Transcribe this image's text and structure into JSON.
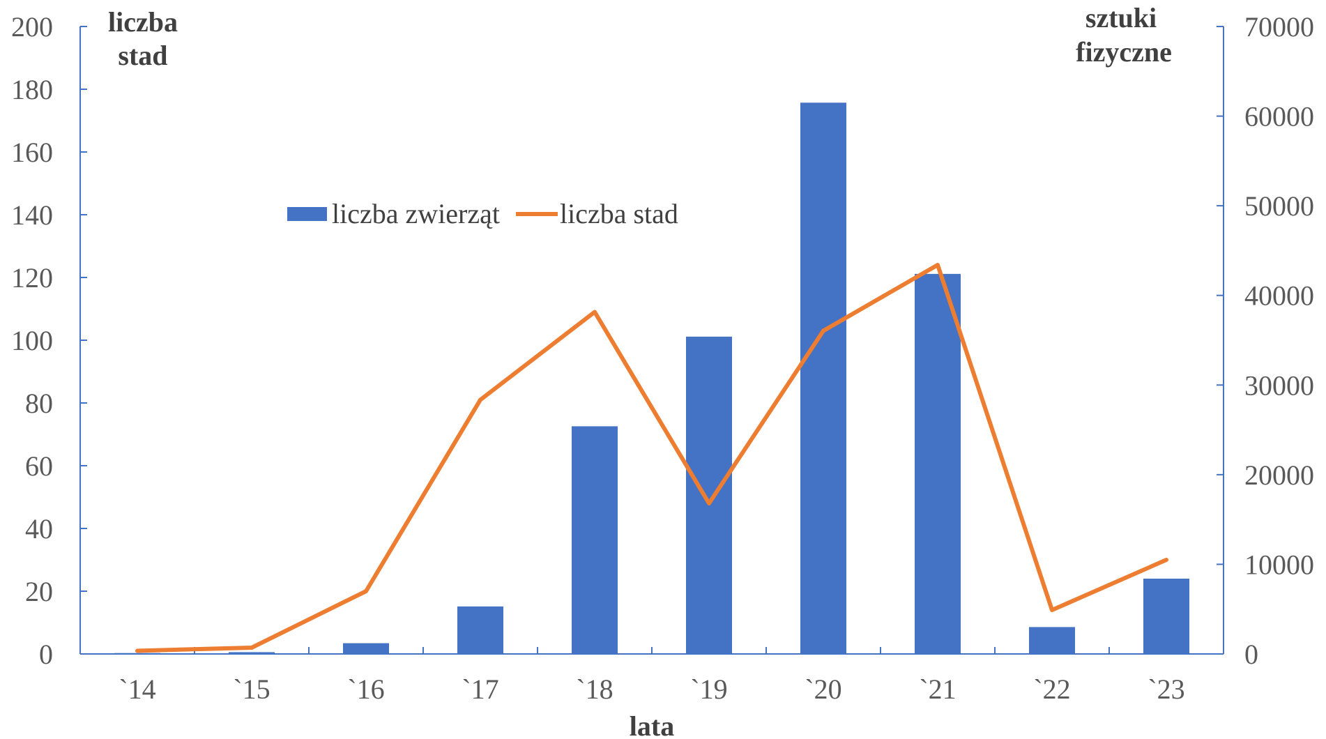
{
  "chart_data": {
    "type": "bar",
    "categories": [
      "`14",
      "`15",
      "`16",
      "`17",
      "`18",
      "`19",
      "`20",
      "`21",
      "`22",
      "`23"
    ],
    "series": [
      {
        "name": "liczba zwierząt",
        "type": "bar",
        "axis": "right",
        "color": "#4472C4",
        "values": [
          100,
          200,
          1200,
          5300,
          25400,
          35400,
          61500,
          42400,
          3000,
          8400
        ]
      },
      {
        "name": "liczba stad",
        "type": "line",
        "axis": "left",
        "color": "#ED7D31",
        "values": [
          1,
          2,
          20,
          81,
          109,
          48,
          103,
          124,
          14,
          30
        ]
      }
    ],
    "left_axis": {
      "label_line1": "liczba",
      "label_line2": "stad",
      "ylim": [
        0,
        200
      ],
      "ticks": [
        0,
        20,
        40,
        60,
        80,
        100,
        120,
        140,
        160,
        180,
        200
      ]
    },
    "right_axis": {
      "label_line1": "sztuki",
      "label_line2": "fizyczne",
      "ylim": [
        0,
        70000
      ],
      "ticks": [
        0,
        10000,
        20000,
        30000,
        40000,
        50000,
        60000,
        70000
      ]
    },
    "xlabel": "lata",
    "legend_position": "top-center",
    "grid": false
  }
}
